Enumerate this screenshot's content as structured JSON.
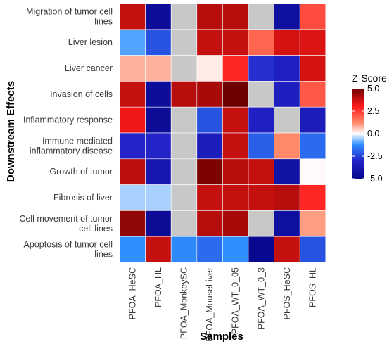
{
  "chart_data": {
    "type": "heatmap",
    "xlabel": "Samples",
    "ylabel": "Downstream Effects",
    "columns": [
      "PFOA_HeSC",
      "PFOA_HL",
      "PFOA_MonkeySC",
      "PFOA_MouseLiver",
      "PFOA_WT_0_05",
      "PFOA_WT_0_3",
      "PFOS_HeSC",
      "PFOS_HL"
    ],
    "rows": [
      {
        "label": [
          "Migration of tumor cell",
          "lines"
        ],
        "values": [
          3.8,
          -4.5,
          null,
          4.0,
          4.0,
          null,
          -4.3,
          2.2
        ]
      },
      {
        "label": [
          "Liver lesion"
        ],
        "values": [
          -1.0,
          -2.2,
          null,
          3.8,
          3.8,
          1.8,
          3.6,
          3.5
        ]
      },
      {
        "label": [
          "Liver cancer"
        ],
        "values": [
          0.8,
          0.8,
          null,
          0.2,
          2.8,
          -2.8,
          -3.2,
          3.6
        ]
      },
      {
        "label": [
          "Invasion of cells"
        ],
        "values": [
          3.8,
          -4.5,
          4.0,
          4.2,
          5.0,
          null,
          -3.3,
          2.0
        ]
      },
      {
        "label": [
          "Inflammatory response"
        ],
        "values": [
          3.2,
          -4.6,
          null,
          -2.2,
          3.8,
          -3.2,
          null,
          -3.5
        ]
      },
      {
        "label": [
          "Immune mediated",
          "inflammatory disease"
        ],
        "values": [
          -3.0,
          -3.0,
          null,
          -3.4,
          3.8,
          -2.0,
          1.2,
          -1.8
        ]
      },
      {
        "label": [
          "Growth of tumor"
        ],
        "values": [
          3.9,
          -3.8,
          null,
          4.8,
          4.0,
          3.8,
          -4.2,
          0.05
        ]
      },
      {
        "label": [
          "Fibrosis of liver"
        ],
        "values": [
          -0.5,
          -0.5,
          null,
          3.8,
          3.8,
          3.8,
          4.0,
          2.8
        ]
      },
      {
        "label": [
          "Cell movement of tumor",
          "cell lines"
        ],
        "values": [
          4.5,
          -4.6,
          null,
          4.0,
          4.2,
          null,
          -4.3,
          1.0
        ]
      },
      {
        "label": [
          "Apoptosis of tumor cell",
          "lines"
        ],
        "values": [
          -1.2,
          3.8,
          -1.3,
          -1.8,
          -1.2,
          -4.8,
          3.8,
          -2.2
        ]
      }
    ],
    "missing_color": "#c8c8c8",
    "colorscale": {
      "title": "Z-Score",
      "min": -5.0,
      "max": 5.0,
      "ticks": [
        5.0,
        2.5,
        0.0,
        -2.5,
        -5.0
      ],
      "tick_labels": [
        "5.0",
        "2.5",
        "0.0",
        "-2.5",
        "-5.0"
      ],
      "stops": [
        {
          "value": -5.0,
          "color": "#06068a"
        },
        {
          "value": -3.0,
          "color": "#2323c8"
        },
        {
          "value": -1.2,
          "color": "#2f8fff"
        },
        {
          "value": 0.0,
          "color": "#ffffff"
        },
        {
          "value": 1.2,
          "color": "#ff8a6a"
        },
        {
          "value": 3.0,
          "color": "#ff1a1a"
        },
        {
          "value": 5.0,
          "color": "#6e0000"
        }
      ]
    }
  }
}
